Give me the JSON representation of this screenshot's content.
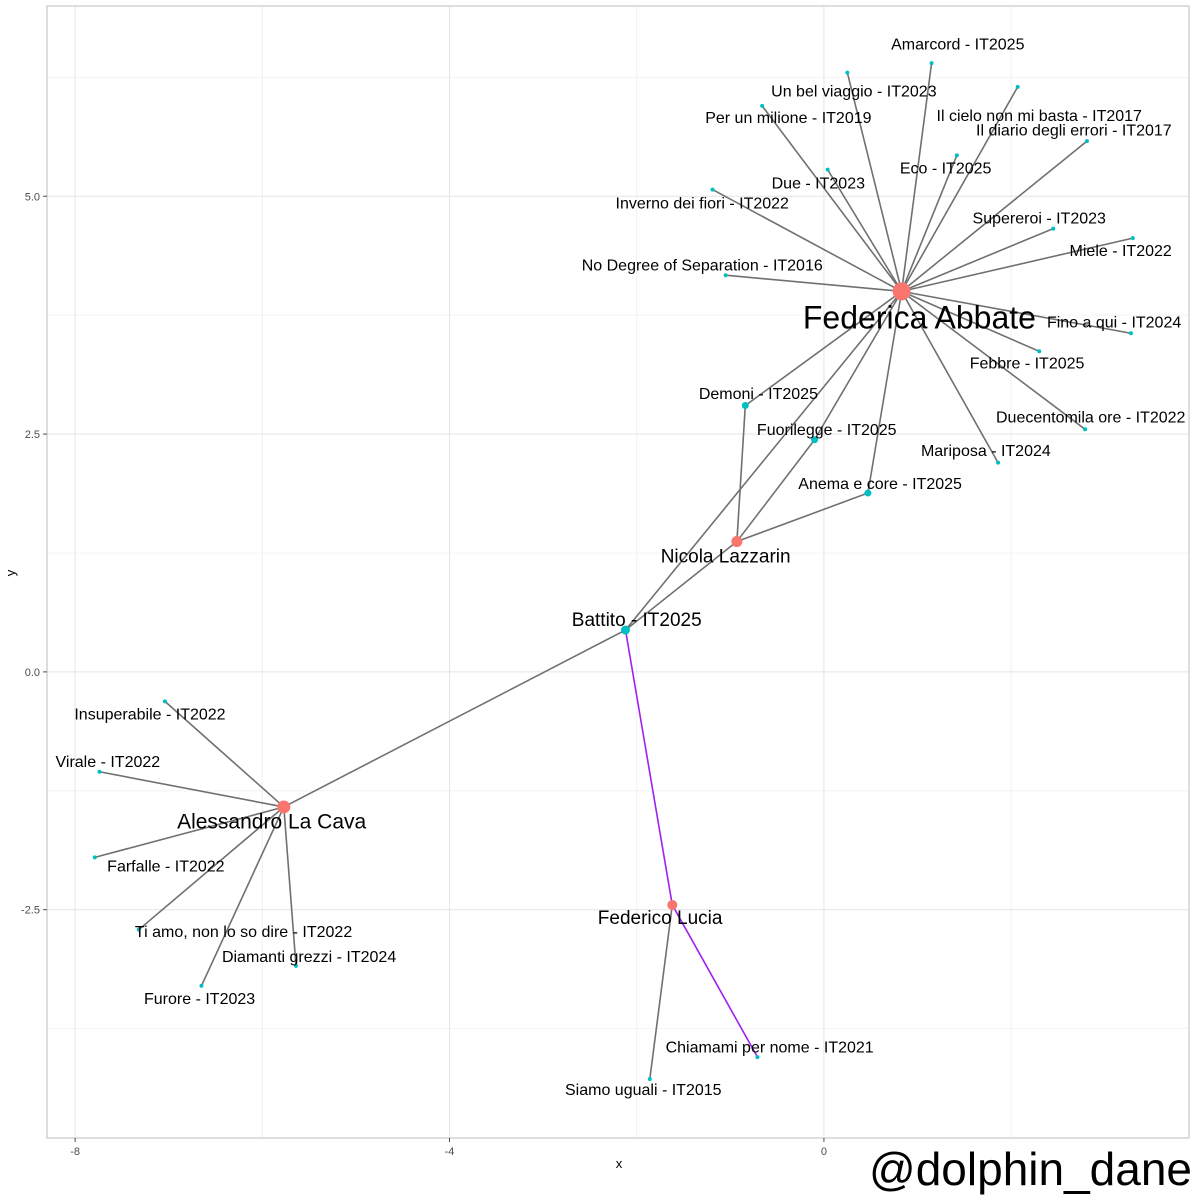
{
  "chart_data": {
    "type": "network",
    "xlabel": "x",
    "ylabel": "y",
    "xlim": [
      -8.3,
      3.9
    ],
    "ylim": [
      -4.9,
      7.0
    ],
    "xticks": [
      -8,
      -4,
      0
    ],
    "xtick_labels": [
      "-8",
      "-4",
      "0"
    ],
    "yticks": [
      -2.5,
      0.0,
      2.5,
      5.0
    ],
    "ytick_labels": [
      "-2.5",
      "0.0",
      "2.5",
      "5.0"
    ],
    "grid": true,
    "colors": {
      "artist": "#f8766d",
      "song": "#00bfc4",
      "edge": "#707070",
      "highlight_edge": "#a020f0"
    },
    "nodes": [
      {
        "id": "fa",
        "label": "Federica Abbate",
        "kind": "artist",
        "x": 0.83,
        "y": 4.0,
        "lx": 1.02,
        "ly": 3.73,
        "size": 18
      },
      {
        "id": "nl",
        "label": "Nicola Lazzarin",
        "kind": "artist",
        "x": -0.93,
        "y": 1.37,
        "lx": -1.05,
        "ly": 1.22,
        "size": 11
      },
      {
        "id": "alc",
        "label": "Alessandro La Cava",
        "kind": "artist",
        "x": -5.77,
        "y": -1.42,
        "lx": -5.9,
        "ly": -1.57,
        "size": 13
      },
      {
        "id": "fl",
        "label": "Federico Lucia",
        "kind": "artist",
        "x": -1.62,
        "y": -2.45,
        "lx": -1.75,
        "ly": -2.58,
        "size": 10
      },
      {
        "id": "battito",
        "label": "Battito - IT2025",
        "kind": "song",
        "x": -2.12,
        "y": 0.44,
        "lx": -2.0,
        "ly": 0.55,
        "size": 9
      },
      {
        "id": "demoni",
        "label": "Demoni - IT2025",
        "kind": "song",
        "x": -0.84,
        "y": 2.8,
        "lx": -0.7,
        "ly": 2.93,
        "size": 7
      },
      {
        "id": "fuori",
        "label": "Fuorilegge - IT2025",
        "kind": "song",
        "x": -0.1,
        "y": 2.44,
        "lx": 0.03,
        "ly": 2.55,
        "size": 7
      },
      {
        "id": "anema",
        "label": "Anema e core - IT2025",
        "kind": "song",
        "x": 0.47,
        "y": 1.88,
        "lx": 0.6,
        "ly": 1.98,
        "size": 7
      },
      {
        "id": "amarcord",
        "label": "Amarcord - IT2025",
        "kind": "song",
        "x": 1.15,
        "y": 6.4,
        "lx": 1.43,
        "ly": 6.6,
        "size": 4
      },
      {
        "id": "viaggio",
        "label": "Un bel viaggio - IT2023",
        "kind": "song",
        "x": 0.25,
        "y": 6.3,
        "lx": 0.32,
        "ly": 6.11,
        "size": 4
      },
      {
        "id": "cielo",
        "label": "Il cielo non mi basta - IT2017",
        "kind": "song",
        "x": 2.07,
        "y": 6.15,
        "lx": 2.3,
        "ly": 5.85,
        "size": 4
      },
      {
        "id": "milione",
        "label": "Per un milione - IT2019",
        "kind": "song",
        "x": -0.66,
        "y": 5.95,
        "lx": -0.38,
        "ly": 5.83,
        "size": 4
      },
      {
        "id": "diario",
        "label": "Il diario degli errori - IT2017",
        "kind": "song",
        "x": 2.81,
        "y": 5.58,
        "lx": 2.67,
        "ly": 5.7,
        "size": 4
      },
      {
        "id": "eco",
        "label": "Eco - IT2025",
        "kind": "song",
        "x": 1.42,
        "y": 5.43,
        "lx": 1.3,
        "ly": 5.3,
        "size": 4
      },
      {
        "id": "due",
        "label": "Due - IT2023",
        "kind": "song",
        "x": 0.04,
        "y": 5.28,
        "lx": -0.06,
        "ly": 5.14,
        "size": 4
      },
      {
        "id": "inverno",
        "label": "Inverno dei fiori - IT2022",
        "kind": "song",
        "x": -1.19,
        "y": 5.07,
        "lx": -1.3,
        "ly": 4.93,
        "size": 4
      },
      {
        "id": "supereroi",
        "label": "Supereroi - IT2023",
        "kind": "song",
        "x": 2.45,
        "y": 4.66,
        "lx": 2.3,
        "ly": 4.77,
        "size": 4
      },
      {
        "id": "miele",
        "label": "Miele - IT2022",
        "kind": "song",
        "x": 3.3,
        "y": 4.56,
        "lx": 3.17,
        "ly": 4.43,
        "size": 4
      },
      {
        "id": "nodegree",
        "label": "No Degree of Separation - IT2016",
        "kind": "song",
        "x": -1.05,
        "y": 4.17,
        "lx": -1.3,
        "ly": 4.28,
        "size": 4
      },
      {
        "id": "finoaqui",
        "label": "Fino a qui - IT2024",
        "kind": "song",
        "x": 3.28,
        "y": 3.56,
        "lx": 3.1,
        "ly": 3.68,
        "size": 4
      },
      {
        "id": "febbre",
        "label": "Febbre - IT2025",
        "kind": "song",
        "x": 2.3,
        "y": 3.37,
        "lx": 2.17,
        "ly": 3.25,
        "size": 4
      },
      {
        "id": "duecento",
        "label": "Duecentomila ore - IT2022",
        "kind": "song",
        "x": 2.79,
        "y": 2.55,
        "lx": 2.85,
        "ly": 2.68,
        "size": 4
      },
      {
        "id": "mariposa",
        "label": "Mariposa - IT2024",
        "kind": "song",
        "x": 1.86,
        "y": 2.2,
        "lx": 1.73,
        "ly": 2.33,
        "size": 4
      },
      {
        "id": "insuperabile",
        "label": "Insuperabile - IT2022",
        "kind": "song",
        "x": -7.04,
        "y": -0.31,
        "lx": -7.2,
        "ly": -0.44,
        "size": 4
      },
      {
        "id": "virale",
        "label": "Virale - IT2022",
        "kind": "song",
        "x": -7.74,
        "y": -1.05,
        "lx": -7.65,
        "ly": -0.94,
        "size": 4
      },
      {
        "id": "farfalle",
        "label": "Farfalle - IT2022",
        "kind": "song",
        "x": -7.79,
        "y": -1.95,
        "lx": -7.03,
        "ly": -2.04,
        "size": 4
      },
      {
        "id": "tiamo",
        "label": "Ti amo, non lo so dire - IT2022",
        "kind": "song",
        "x": -7.32,
        "y": -2.71,
        "lx": -6.2,
        "ly": -2.73,
        "size": 4
      },
      {
        "id": "diamanti",
        "label": "Diamanti grezzi - IT2024",
        "kind": "song",
        "x": -5.64,
        "y": -3.09,
        "lx": -5.5,
        "ly": -2.99,
        "size": 4
      },
      {
        "id": "furore",
        "label": "Furore - IT2023",
        "kind": "song",
        "x": -6.65,
        "y": -3.3,
        "lx": -6.67,
        "ly": -3.43,
        "size": 4
      },
      {
        "id": "chiamami",
        "label": "Chiamami per nome - IT2021",
        "kind": "song",
        "x": -0.71,
        "y": -4.05,
        "lx": -0.58,
        "ly": -3.94,
        "size": 4
      },
      {
        "id": "uguali",
        "label": "Siamo uguali - IT2015",
        "kind": "song",
        "x": -1.86,
        "y": -4.28,
        "lx": -1.93,
        "ly": -4.39,
        "size": 4
      }
    ],
    "edges": [
      {
        "source": "fa",
        "target": "amarcord"
      },
      {
        "source": "fa",
        "target": "viaggio"
      },
      {
        "source": "fa",
        "target": "cielo"
      },
      {
        "source": "fa",
        "target": "milione"
      },
      {
        "source": "fa",
        "target": "diario"
      },
      {
        "source": "fa",
        "target": "eco"
      },
      {
        "source": "fa",
        "target": "due"
      },
      {
        "source": "fa",
        "target": "inverno"
      },
      {
        "source": "fa",
        "target": "supereroi"
      },
      {
        "source": "fa",
        "target": "miele"
      },
      {
        "source": "fa",
        "target": "nodegree"
      },
      {
        "source": "fa",
        "target": "finoaqui"
      },
      {
        "source": "fa",
        "target": "febbre"
      },
      {
        "source": "fa",
        "target": "duecento"
      },
      {
        "source": "fa",
        "target": "mariposa"
      },
      {
        "source": "fa",
        "target": "demoni"
      },
      {
        "source": "fa",
        "target": "fuori"
      },
      {
        "source": "fa",
        "target": "anema"
      },
      {
        "source": "fa",
        "target": "battito"
      },
      {
        "source": "nl",
        "target": "demoni"
      },
      {
        "source": "nl",
        "target": "fuori"
      },
      {
        "source": "nl",
        "target": "anema"
      },
      {
        "source": "nl",
        "target": "battito"
      },
      {
        "source": "alc",
        "target": "battito"
      },
      {
        "source": "alc",
        "target": "insuperabile"
      },
      {
        "source": "alc",
        "target": "virale"
      },
      {
        "source": "alc",
        "target": "farfalle"
      },
      {
        "source": "alc",
        "target": "tiamo"
      },
      {
        "source": "alc",
        "target": "diamanti"
      },
      {
        "source": "alc",
        "target": "furore"
      },
      {
        "source": "fl",
        "target": "battito",
        "highlight": true
      },
      {
        "source": "fl",
        "target": "chiamami",
        "highlight": true
      },
      {
        "source": "fl",
        "target": "uguali"
      }
    ]
  },
  "watermark": "@dolphin_dane"
}
